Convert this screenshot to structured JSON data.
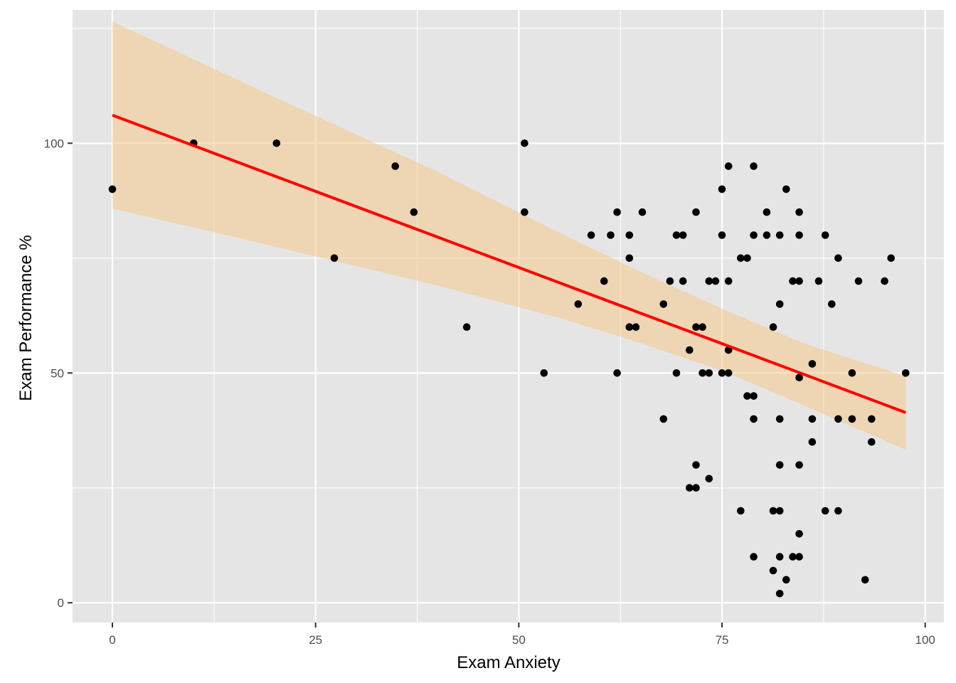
{
  "chart_data": {
    "type": "scatter",
    "title": "",
    "xlabel": "Exam Anxiety",
    "ylabel": "Exam Performance %",
    "xlim": [
      -4.9,
      102.3
    ],
    "ylim": [
      -4.3,
      129
    ],
    "x_ticks": [
      0,
      25,
      50,
      75,
      100
    ],
    "x_tick_labels": [
      "0",
      "25",
      "50",
      "75",
      "100"
    ],
    "y_ticks": [
      0,
      50,
      100
    ],
    "y_tick_labels": [
      "0",
      "50",
      "100"
    ],
    "grid": true,
    "legend": "none",
    "colors": {
      "panel_background": "#e5e5e5",
      "grid_line": "#ffffff",
      "points": "#000000",
      "fit_line": "#ff0000",
      "confidence_band": "#f5c98a"
    },
    "points": [
      [
        0.0,
        90
      ],
      [
        10.0,
        100
      ],
      [
        20.2,
        100
      ],
      [
        27.3,
        75
      ],
      [
        34.8,
        95
      ],
      [
        37.1,
        85
      ],
      [
        43.6,
        60
      ],
      [
        50.7,
        100
      ],
      [
        50.7,
        85
      ],
      [
        53.1,
        50
      ],
      [
        57.3,
        65
      ],
      [
        58.9,
        80
      ],
      [
        60.5,
        70
      ],
      [
        61.3,
        80
      ],
      [
        62.1,
        85
      ],
      [
        62.1,
        50
      ],
      [
        63.6,
        80
      ],
      [
        63.6,
        75
      ],
      [
        63.6,
        60
      ],
      [
        64.4,
        60
      ],
      [
        65.2,
        85
      ],
      [
        67.8,
        65
      ],
      [
        67.8,
        40
      ],
      [
        68.6,
        70
      ],
      [
        69.4,
        80
      ],
      [
        69.4,
        50
      ],
      [
        70.2,
        80
      ],
      [
        70.2,
        70
      ],
      [
        71.0,
        55
      ],
      [
        71.0,
        25
      ],
      [
        71.8,
        85
      ],
      [
        71.8,
        60
      ],
      [
        71.8,
        30
      ],
      [
        71.8,
        25
      ],
      [
        72.6,
        60
      ],
      [
        72.6,
        50
      ],
      [
        73.4,
        70
      ],
      [
        73.4,
        50
      ],
      [
        73.4,
        27
      ],
      [
        74.2,
        70
      ],
      [
        75.0,
        90
      ],
      [
        75.0,
        80
      ],
      [
        75.0,
        50
      ],
      [
        75.8,
        95
      ],
      [
        75.8,
        70
      ],
      [
        75.8,
        55
      ],
      [
        75.8,
        50
      ],
      [
        77.3,
        75
      ],
      [
        77.3,
        20
      ],
      [
        78.1,
        75
      ],
      [
        78.1,
        45
      ],
      [
        78.9,
        95
      ],
      [
        78.9,
        80
      ],
      [
        78.9,
        45
      ],
      [
        78.9,
        40
      ],
      [
        78.9,
        10
      ],
      [
        80.5,
        85
      ],
      [
        80.5,
        80
      ],
      [
        81.3,
        60
      ],
      [
        81.3,
        20
      ],
      [
        81.3,
        7
      ],
      [
        82.1,
        80
      ],
      [
        82.1,
        65
      ],
      [
        82.1,
        40
      ],
      [
        82.1,
        30
      ],
      [
        82.1,
        20
      ],
      [
        82.1,
        10
      ],
      [
        82.1,
        2
      ],
      [
        82.9,
        90
      ],
      [
        82.9,
        5
      ],
      [
        83.7,
        70
      ],
      [
        83.7,
        10
      ],
      [
        84.5,
        85
      ],
      [
        84.5,
        80
      ],
      [
        84.5,
        70
      ],
      [
        84.5,
        49
      ],
      [
        84.5,
        30
      ],
      [
        84.5,
        15
      ],
      [
        84.5,
        10
      ],
      [
        86.1,
        52
      ],
      [
        86.1,
        40
      ],
      [
        86.1,
        35
      ],
      [
        86.9,
        70
      ],
      [
        87.7,
        80
      ],
      [
        87.7,
        20
      ],
      [
        88.5,
        65
      ],
      [
        89.3,
        75
      ],
      [
        89.3,
        40
      ],
      [
        89.3,
        20
      ],
      [
        91.0,
        50
      ],
      [
        91.0,
        40
      ],
      [
        91.8,
        70
      ],
      [
        92.6,
        5
      ],
      [
        93.4,
        40
      ],
      [
        93.4,
        35
      ],
      [
        95.0,
        70
      ],
      [
        95.8,
        75
      ],
      [
        97.6,
        50
      ]
    ],
    "regression": {
      "x_start": 0.0,
      "x_end": 97.6,
      "y_start": 106.1,
      "y_end": 41.4
    },
    "confidence_band": [
      [
        0.0,
        85.8,
        126.5
      ],
      [
        20.0,
        77.5,
        110.0
      ],
      [
        40.0,
        69.0,
        93.8
      ],
      [
        55.0,
        62.0,
        80.5
      ],
      [
        65.0,
        56.5,
        72.0
      ],
      [
        75.0,
        50.5,
        64.0
      ],
      [
        85.0,
        43.0,
        56.5
      ],
      [
        97.6,
        33.3,
        49.3
      ]
    ]
  }
}
